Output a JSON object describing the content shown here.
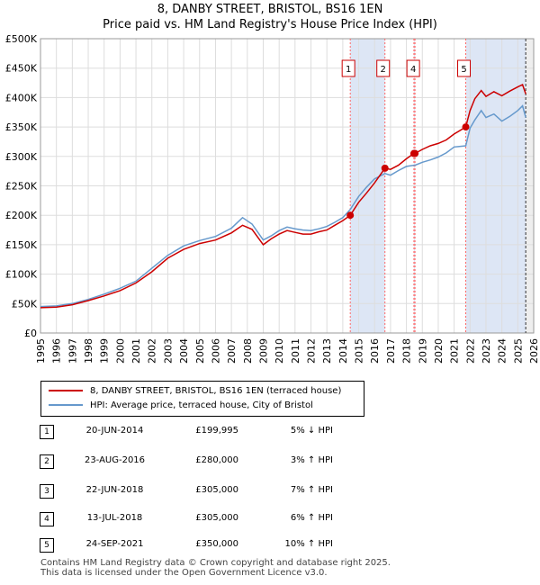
{
  "title_line1": "8, DANBY STREET, BRISTOL, BS16 1EN",
  "title_line2": "Price paid vs. HM Land Registry's House Price Index (HPI)",
  "colors": {
    "property": "#cc0000",
    "hpi": "#6699cc",
    "shade": "#dde6f5",
    "marker_line": "#ff6666"
  },
  "chart_data": {
    "type": "line",
    "title": "8, DANBY STREET, BRISTOL, BS16 1EN — Price paid vs. HM Land Registry's House Price Index (HPI)",
    "xlim": [
      1995,
      2026
    ],
    "ylim": [
      0,
      500000
    ],
    "y_tick_values": [
      0,
      50000,
      100000,
      150000,
      200000,
      250000,
      300000,
      350000,
      400000,
      450000,
      500000
    ],
    "y_tick_labels": [
      "£0",
      "£50K",
      "£100K",
      "£150K",
      "£200K",
      "£250K",
      "£300K",
      "£350K",
      "£400K",
      "£450K",
      "£500K"
    ],
    "x_tick_values": [
      1995,
      1996,
      1997,
      1998,
      1999,
      2000,
      2001,
      2002,
      2003,
      2004,
      2005,
      2006,
      2007,
      2008,
      2009,
      2010,
      2011,
      2012,
      2013,
      2014,
      2015,
      2016,
      2017,
      2018,
      2019,
      2020,
      2021,
      2022,
      2023,
      2024,
      2025,
      2026
    ],
    "x_tick_labels": [
      "1995",
      "1996",
      "1997",
      "1998",
      "1999",
      "2000",
      "2001",
      "2002",
      "2003",
      "2004",
      "2005",
      "2006",
      "2007",
      "2008",
      "2009",
      "2010",
      "2011",
      "2012",
      "2013",
      "2014",
      "2015",
      "2016",
      "2017",
      "2018",
      "2019",
      "2020",
      "2021",
      "2022",
      "2023",
      "2024",
      "2025",
      "2026"
    ],
    "shaded_ranges": [
      [
        2014.47,
        2016.65
      ],
      [
        2018.47,
        2018.54
      ],
      [
        2021.73,
        2025.5
      ]
    ],
    "data_end": 2025.5,
    "series": [
      {
        "name": "8, DANBY STREET, BRISTOL, BS16 1EN (terraced house)",
        "color": "#cc0000",
        "x": [
          1995,
          1996,
          1997,
          1998,
          1999,
          2000,
          2001,
          2002,
          2003,
          2004,
          2005,
          2006,
          2007,
          2007.7,
          2008.3,
          2009,
          2009.5,
          2010,
          2010.5,
          2011,
          2011.5,
          2012,
          2012.5,
          2013,
          2013.5,
          2014,
          2014.47,
          2015,
          2015.5,
          2016,
          2016.65,
          2017,
          2017.5,
          2018,
          2018.47,
          2018.54,
          2019,
          2019.5,
          2020,
          2020.5,
          2021,
          2021.73,
          2022,
          2022.3,
          2022.7,
          2023,
          2023.5,
          2024,
          2024.5,
          2025,
          2025.3,
          2025.5
        ],
        "y": [
          43000,
          44000,
          48000,
          55000,
          63000,
          72000,
          85000,
          104000,
          127000,
          142000,
          152000,
          158000,
          170000,
          183000,
          176000,
          150000,
          160000,
          168000,
          174000,
          171000,
          168000,
          168000,
          172000,
          175000,
          183000,
          191000,
          199995,
          222000,
          238000,
          255000,
          280000,
          278000,
          285000,
          296000,
          305000,
          305000,
          312000,
          318000,
          322000,
          328000,
          338000,
          350000,
          378000,
          398000,
          412000,
          402000,
          410000,
          403000,
          411000,
          418000,
          422000,
          406000
        ]
      },
      {
        "name": "HPI: Average price, terraced house, City of Bristol",
        "color": "#6699cc",
        "x": [
          1995,
          1996,
          1997,
          1998,
          1999,
          2000,
          2001,
          2002,
          2003,
          2004,
          2005,
          2006,
          2007,
          2007.7,
          2008.3,
          2009,
          2009.5,
          2010,
          2010.5,
          2011,
          2011.5,
          2012,
          2012.5,
          2013,
          2013.5,
          2014,
          2014.47,
          2015,
          2015.5,
          2016,
          2016.65,
          2017,
          2017.5,
          2018,
          2018.47,
          2018.54,
          2019,
          2019.5,
          2020,
          2020.5,
          2021,
          2021.73,
          2022,
          2022.3,
          2022.7,
          2023,
          2023.5,
          2024,
          2024.5,
          2025,
          2025.3,
          2025.5
        ],
        "y": [
          45000,
          46000,
          50000,
          57000,
          66000,
          76000,
          88000,
          110000,
          132000,
          148000,
          157000,
          164000,
          178000,
          196000,
          185000,
          158000,
          165000,
          174000,
          180000,
          177000,
          175000,
          174000,
          177000,
          181000,
          188000,
          196000,
          210000,
          232000,
          248000,
          262000,
          271000,
          268000,
          276000,
          283000,
          285000,
          285000,
          290000,
          294000,
          299000,
          306000,
          316000,
          318000,
          348000,
          362000,
          378000,
          366000,
          372000,
          360000,
          368000,
          378000,
          386000,
          366000
        ]
      }
    ],
    "sales": [
      {
        "id": "1",
        "x": 2014.47,
        "price": 199995
      },
      {
        "id": "2",
        "x": 2016.65,
        "price": 280000
      },
      {
        "id": "3",
        "x": 2018.47,
        "price": 305000
      },
      {
        "id": "4",
        "x": 2018.54,
        "price": 305000
      },
      {
        "id": "5",
        "x": 2021.73,
        "price": 350000
      }
    ],
    "marker_labels": [
      "1",
      "2",
      "4",
      "5"
    ],
    "marker_label_x": [
      2014.47,
      2016.65,
      2018.54,
      2021.73
    ]
  },
  "legend": {
    "property_label": "8, DANBY STREET, BRISTOL, BS16 1EN (terraced house)",
    "hpi_label": "HPI: Average price, terraced house, City of Bristol"
  },
  "transactions": [
    {
      "num": "1",
      "date": "20-JUN-2014",
      "price": "£199,995",
      "hpi": "5% ↓ HPI"
    },
    {
      "num": "2",
      "date": "23-AUG-2016",
      "price": "£280,000",
      "hpi": "3% ↑ HPI"
    },
    {
      "num": "3",
      "date": "22-JUN-2018",
      "price": "£305,000",
      "hpi": "7% ↑ HPI"
    },
    {
      "num": "4",
      "date": "13-JUL-2018",
      "price": "£305,000",
      "hpi": "6% ↑ HPI"
    },
    {
      "num": "5",
      "date": "24-SEP-2021",
      "price": "£350,000",
      "hpi": "10% ↑ HPI"
    }
  ],
  "footer_line1": "Contains HM Land Registry data © Crown copyright and database right 2025.",
  "footer_line2": "This data is licensed under the Open Government Licence v3.0."
}
